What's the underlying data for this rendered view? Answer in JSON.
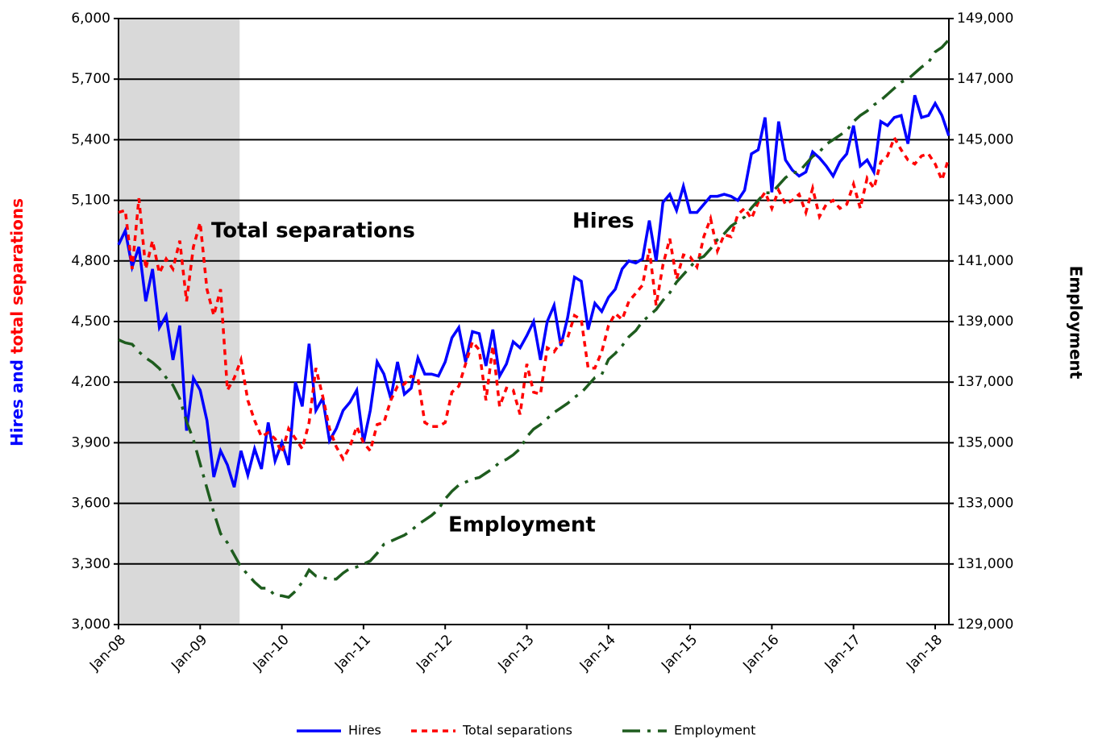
{
  "chart_data": {
    "type": "line",
    "y_label_parts": [
      {
        "text": "Hires and ",
        "color": "#0000ff"
      },
      {
        "text": "total separations",
        "color": "#ff0000"
      }
    ],
    "y2_label": "Employment",
    "y2_label_color": "#1e5c1e",
    "categories": [
      "Jan-08",
      null,
      null,
      null,
      null,
      null,
      null,
      null,
      null,
      null,
      null,
      null,
      "Jan-09",
      null,
      null,
      null,
      null,
      null,
      null,
      null,
      null,
      null,
      null,
      null,
      "Jan-10",
      null,
      null,
      null,
      null,
      null,
      null,
      null,
      null,
      null,
      null,
      null,
      "Jan-11",
      null,
      null,
      null,
      null,
      null,
      null,
      null,
      null,
      null,
      null,
      null,
      "Jan-12",
      null,
      null,
      null,
      null,
      null,
      null,
      null,
      null,
      null,
      null,
      null,
      "Jan-13",
      null,
      null,
      null,
      null,
      null,
      null,
      null,
      null,
      null,
      null,
      null,
      "Jan-14",
      null,
      null,
      null,
      null,
      null,
      null,
      null,
      null,
      null,
      null,
      null,
      "Jan-15",
      null,
      null,
      null,
      null,
      null,
      null,
      null,
      null,
      null,
      null,
      null,
      "Jan-16",
      null,
      null,
      null,
      null,
      null,
      null,
      null,
      null,
      null,
      null,
      null,
      "Jan-17",
      null,
      null,
      null,
      null,
      null,
      null,
      null,
      null,
      null,
      null,
      null,
      "Jan-18",
      null,
      null
    ],
    "shade": {
      "from": 0,
      "to": 17.8,
      "color": "#d9d9d9"
    },
    "series": [
      {
        "name": "Hires",
        "color": "#0000ff",
        "dash": "solid",
        "values": [
          4880,
          4950,
          4770,
          4870,
          4600,
          4760,
          4470,
          4530,
          4310,
          4480,
          3960,
          4220,
          4160,
          4010,
          3730,
          3860,
          3790,
          3680,
          3860,
          3740,
          3870,
          3770,
          4000,
          3810,
          3900,
          3790,
          4200,
          4080,
          4390,
          4060,
          4120,
          3910,
          3970,
          4060,
          4100,
          4160,
          3900,
          4060,
          4300,
          4240,
          4120,
          4300,
          4140,
          4170,
          4320,
          4240,
          4240,
          4230,
          4300,
          4420,
          4470,
          4300,
          4450,
          4440,
          4280,
          4460,
          4230,
          4290,
          4400,
          4370,
          4430,
          4500,
          4310,
          4500,
          4580,
          4380,
          4520,
          4720,
          4700,
          4460,
          4590,
          4550,
          4620,
          4660,
          4760,
          4800,
          4790,
          4810,
          5000,
          4800,
          5090,
          5130,
          5050,
          5170,
          5040,
          5040,
          5080,
          5120,
          5120,
          5130,
          5120,
          5100,
          5150,
          5330,
          5350,
          5510,
          5140,
          5490,
          5300,
          5250,
          5220,
          5240,
          5340,
          5310,
          5270,
          5220,
          5290,
          5330,
          5470,
          5270,
          5300,
          5240,
          5490,
          5470,
          5510,
          5520,
          5380,
          5620,
          5510,
          5520,
          5580,
          5520,
          5420
        ]
      },
      {
        "name": "Total separations",
        "color": "#ff0000",
        "dash": "dotted",
        "values": [
          5040,
          5050,
          4760,
          5110,
          4760,
          4900,
          4740,
          4810,
          4760,
          4900,
          4600,
          4870,
          4990,
          4660,
          4530,
          4660,
          4160,
          4220,
          4310,
          4110,
          4010,
          3930,
          3950,
          3920,
          3850,
          3970,
          3920,
          3870,
          4000,
          4270,
          4130,
          3970,
          3880,
          3820,
          3880,
          3980,
          3900,
          3860,
          3990,
          4000,
          4110,
          4180,
          4190,
          4230,
          4220,
          4000,
          3980,
          3980,
          4000,
          4150,
          4180,
          4290,
          4400,
          4360,
          4110,
          4380,
          4080,
          4170,
          4160,
          4040,
          4290,
          4150,
          4140,
          4370,
          4350,
          4400,
          4420,
          4530,
          4510,
          4270,
          4270,
          4350,
          4480,
          4540,
          4510,
          4600,
          4640,
          4680,
          4860,
          4580,
          4780,
          4910,
          4710,
          4830,
          4820,
          4770,
          4920,
          5010,
          4850,
          4930,
          4920,
          5030,
          5060,
          5010,
          5090,
          5140,
          5060,
          5150,
          5080,
          5100,
          5130,
          5040,
          5160,
          5020,
          5080,
          5100,
          5060,
          5080,
          5180,
          5060,
          5210,
          5160,
          5290,
          5320,
          5410,
          5350,
          5300,
          5280,
          5320,
          5330,
          5280,
          5200,
          5310
        ]
      },
      {
        "name": "Employment",
        "color": "#1e5c1e",
        "dash": "dashed",
        "axis": "y2",
        "values": [
          138400,
          138300,
          138250,
          138000,
          137800,
          137650,
          137450,
          137150,
          136900,
          136450,
          135700,
          135100,
          134300,
          133500,
          132700,
          132000,
          131700,
          131300,
          130900,
          130650,
          130400,
          130200,
          130200,
          129950,
          129950,
          129900,
          130100,
          130400,
          130800,
          130600,
          130550,
          130500,
          130500,
          130700,
          130850,
          130900,
          131000,
          131100,
          131350,
          131650,
          131750,
          131850,
          131950,
          132100,
          132300,
          132450,
          132600,
          132800,
          133150,
          133400,
          133600,
          133700,
          133800,
          133850,
          134000,
          134150,
          134350,
          134450,
          134600,
          134800,
          135200,
          135450,
          135600,
          135800,
          136000,
          136150,
          136300,
          136500,
          136650,
          136900,
          137150,
          137250,
          137750,
          137950,
          138200,
          138500,
          138700,
          139000,
          139200,
          139400,
          139700,
          139950,
          140300,
          140550,
          140800,
          141050,
          141150,
          141400,
          141700,
          141900,
          142150,
          142300,
          142450,
          142750,
          143000,
          143250,
          143250,
          143500,
          143750,
          143900,
          143950,
          144200,
          144450,
          144600,
          144850,
          145000,
          145150,
          145300,
          145600,
          145800,
          145950,
          146150,
          146300,
          146500,
          146700,
          146900,
          147000,
          147200,
          147400,
          147550,
          147900,
          148050,
          148300
        ]
      }
    ],
    "annotations": [
      {
        "text": "Total separations",
        "color": "#ff0000"
      },
      {
        "text": "Hires",
        "color": "#0000ff"
      },
      {
        "text": "Employment",
        "color": "#1e5c1e"
      }
    ],
    "ylim": [
      3000,
      6000
    ],
    "yticks": [
      {
        "value": 3000,
        "label": "3,000"
      },
      {
        "value": 3300,
        "label": "3,300"
      },
      {
        "value": 3600,
        "label": "3,600"
      },
      {
        "value": 3900,
        "label": "3,900"
      },
      {
        "value": 4200,
        "label": "4,200"
      },
      {
        "value": 4500,
        "label": "4,500"
      },
      {
        "value": 4800,
        "label": "4,800"
      },
      {
        "value": 5100,
        "label": "5,100"
      },
      {
        "value": 5400,
        "label": "5,400"
      },
      {
        "value": 5700,
        "label": "5,700"
      },
      {
        "value": 6000,
        "label": "6,000"
      }
    ],
    "y2lim": [
      129000,
      149000
    ],
    "y2ticks": [
      {
        "value": 129000,
        "label": "129,000"
      },
      {
        "value": 131000,
        "label": "131,000"
      },
      {
        "value": 133000,
        "label": "133,000"
      },
      {
        "value": 135000,
        "label": "135,000"
      },
      {
        "value": 137000,
        "label": "137,000"
      },
      {
        "value": 139000,
        "label": "139,000"
      },
      {
        "value": 141000,
        "label": "141,000"
      },
      {
        "value": 143000,
        "label": "143,000"
      },
      {
        "value": 145000,
        "label": "145,000"
      },
      {
        "value": 147000,
        "label": "147,000"
      },
      {
        "value": 149000,
        "label": "149,000"
      }
    ],
    "grid": true,
    "legend": "bottom"
  }
}
